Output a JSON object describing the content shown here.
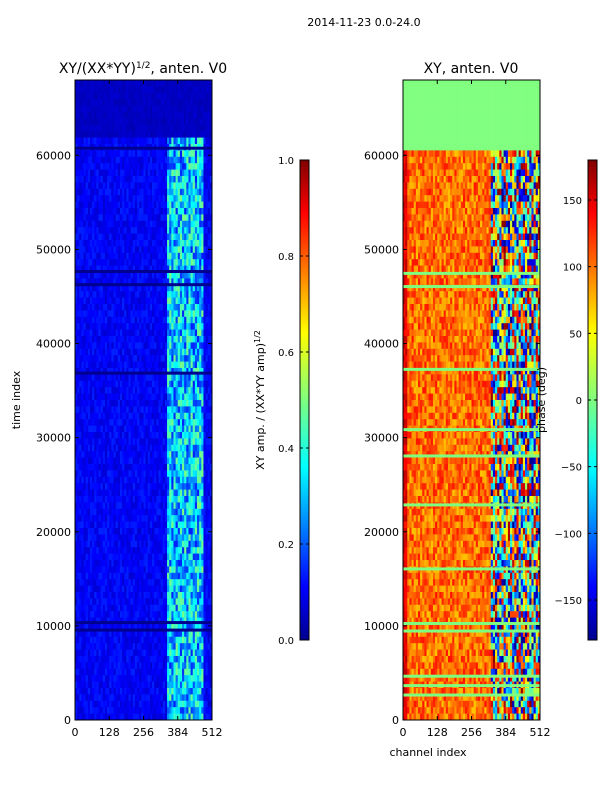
{
  "suptitle": "2014-11-23 0.0-24.0",
  "chart_data": [
    {
      "type": "heatmap",
      "title": "XY/(XX*YY)^{1/2}, anten. V0",
      "title_main": "XY/(XX*YY)",
      "title_exp": "1/2",
      "title_tail": ", anten. V0",
      "xlabel": "",
      "ylabel": "time index",
      "xlim": [
        0,
        512
      ],
      "ylim": [
        0,
        68000
      ],
      "xticks": [
        0,
        128,
        256,
        384,
        512
      ],
      "yticks": [
        0,
        10000,
        20000,
        30000,
        40000,
        50000,
        60000
      ],
      "colormap": "jet",
      "colorbar": {
        "label": "XY amp. / (XX*YY amp)^{1/2}",
        "label_main": "XY amp. / (XX*YY amp)",
        "label_exp": "1/2",
        "range": [
          0.0,
          1.0
        ],
        "ticks": [
          "0.0",
          "0.2",
          "0.4",
          "0.6",
          "0.8",
          "1.0"
        ]
      }
    },
    {
      "type": "heatmap",
      "title": "XY, anten. V0",
      "xlabel": "channel index",
      "ylabel": "",
      "xlim": [
        0,
        512
      ],
      "ylim": [
        0,
        68000
      ],
      "xticks": [
        0,
        128,
        256,
        384,
        512
      ],
      "yticks": [
        0,
        10000,
        20000,
        30000,
        40000,
        50000,
        60000
      ],
      "colormap": "jet",
      "colorbar": {
        "label": "phase (deg)",
        "range": [
          -180,
          180
        ],
        "ticks": [
          "-150",
          "-100",
          "-50",
          "0",
          "50",
          "100",
          "150"
        ]
      }
    }
  ],
  "colors": {
    "jet_dark_blue": "#00008f",
    "jet_blue": "#0000ff",
    "jet_cyan": "#00ffff",
    "jet_green": "#7fff7f",
    "jet_yellow": "#ffff00",
    "jet_red": "#ff0000",
    "jet_dark_red": "#800000"
  }
}
